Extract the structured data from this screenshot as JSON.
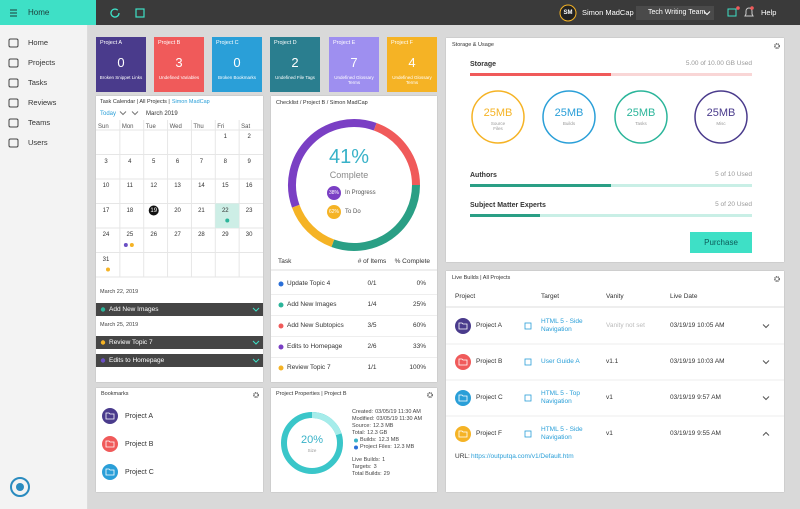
{
  "topbar": {
    "home": "Home",
    "user_initials": "SM",
    "user": "Simon MadCap",
    "team": "Tech Writing Team",
    "help": "Help"
  },
  "sidebar": [
    "Home",
    "Projects",
    "Tasks",
    "Reviews",
    "Teams",
    "Users"
  ],
  "tiles": [
    {
      "project": "Project A",
      "count": 0,
      "label": "Broken Snippet Links"
    },
    {
      "project": "Project B",
      "count": 3,
      "label": "Undefined Variables"
    },
    {
      "project": "Project C",
      "count": 0,
      "label": "Broken Bookmarks"
    },
    {
      "project": "Project D",
      "count": 2,
      "label": "Undefined File Tags"
    },
    {
      "project": "Project E",
      "count": 7,
      "label": "Undefined Glossary Terms"
    },
    {
      "project": "Project F",
      "count": 4,
      "label": "Undefined Glossary Terms"
    }
  ],
  "calendar": {
    "title": "Task Calendar | All Projects |",
    "owner": "Simon MadCap",
    "today": "Today",
    "month": "March 2019",
    "weekdays": [
      "Sun",
      "Mon",
      "Tue",
      "Wed",
      "Thu",
      "Fri",
      "Sat"
    ],
    "weeks": [
      [
        null,
        null,
        null,
        null,
        null,
        "1",
        "2"
      ],
      [
        "3",
        "4",
        "5",
        "6",
        "7",
        "8",
        "9"
      ],
      [
        "10",
        "11",
        "12",
        "13",
        "14",
        "15",
        "16"
      ],
      [
        "17",
        "18",
        "19",
        "20",
        "21",
        "22",
        "23"
      ],
      [
        "24",
        "25",
        "26",
        "27",
        "28",
        "29",
        "30"
      ],
      [
        "31",
        null,
        null,
        null,
        null,
        null,
        null
      ]
    ],
    "events": [
      {
        "date": "March 22, 2019",
        "items": [
          "Add New Images"
        ]
      },
      {
        "date": "March 25, 2019",
        "items": [
          "Review Topic 7",
          "Edits to Homepage"
        ]
      }
    ]
  },
  "checklist": {
    "title": "Checklist / Project B / Simon MadCap",
    "percent": "41%",
    "status": "Complete",
    "legend": [
      {
        "value": "38%",
        "label": "In Progress"
      },
      {
        "value": "62%",
        "label": "To Do"
      }
    ],
    "columns": [
      "Task",
      "# of Items",
      "% Complete"
    ],
    "rows": [
      [
        "Update Topic 4",
        "0/1",
        "0%"
      ],
      [
        "Add New Images",
        "1/4",
        "25%"
      ],
      [
        "Add New Subtopics",
        "3/5",
        "60%"
      ],
      [
        "Edits to Homepage",
        "2/6",
        "33%"
      ],
      [
        "Review Topic 7",
        "1/1",
        "100%"
      ]
    ]
  },
  "storage": {
    "title": "Storage & Usage",
    "storage_label": "Storage",
    "storage_used": "5.00 of 10.00 GB Used",
    "circles": [
      {
        "size": "25MB",
        "label": "Source Files"
      },
      {
        "size": "25MB",
        "label": "Builds"
      },
      {
        "size": "25MB",
        "label": "Tasks"
      },
      {
        "size": "25MB",
        "label": "Misc"
      }
    ],
    "authors_label": "Authors",
    "authors_used": "5 of 10 Used",
    "sme_label": "Subject Matter Experts",
    "sme_used": "5 of 20 Used",
    "button": "Purchase"
  },
  "live_builds": {
    "title": "Live Builds | All Projects",
    "columns": [
      "Project",
      "Target",
      "Vanity",
      "Live Date"
    ],
    "rows": [
      [
        "Project A",
        "HTML 5 - Side Navigation",
        "Vanity not set",
        "03/19/19 10:05 AM"
      ],
      [
        "Project B",
        "User Guide A",
        "v1.1",
        "03/19/19 10:03 AM"
      ],
      [
        "Project C",
        "HTML 5 - Top Navigation",
        "v1",
        "03/19/19 9:57 AM"
      ],
      [
        "Project F",
        "HTML 5 - Side Navigation",
        "v1",
        "03/19/19 9:55 AM"
      ]
    ],
    "url_label": "URL:",
    "url": "https://outputqa.com/v1/Default.htm"
  },
  "bookmarks": {
    "title": "Bookmarks",
    "items": [
      "Project A",
      "Project B",
      "Project C"
    ]
  },
  "properties": {
    "title": "Project Properties | Project B",
    "percent": "20%",
    "caption": "Size",
    "lines": [
      [
        "Created:",
        "03/05/19 11:30 AM"
      ],
      [
        "Modified:",
        "03/05/19 11:30 AM"
      ],
      [
        "Source:",
        "12.3 MB"
      ],
      [
        "Total:",
        "12.3 GB"
      ],
      [
        "Builds:",
        "12.3 MB"
      ],
      [
        "Project Files:",
        "12.3 MB"
      ],
      [
        "Live Builds:",
        "1"
      ],
      [
        "Targets:",
        "3"
      ],
      [
        "Total Builds:",
        "29"
      ]
    ]
  }
}
